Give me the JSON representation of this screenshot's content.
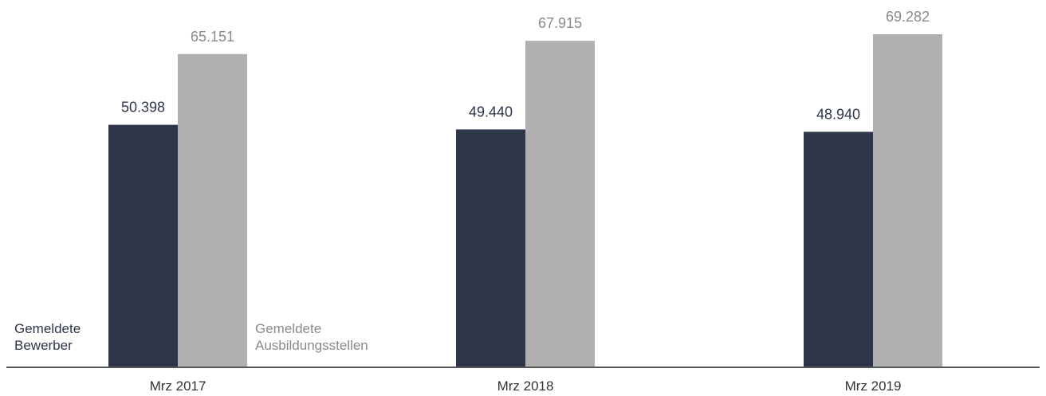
{
  "chart_data": {
    "type": "bar",
    "categories": [
      "Mrz 2017",
      "Mrz 2018",
      "Mrz 2019"
    ],
    "series": [
      {
        "name": "Gemeldete Bewerber",
        "name_lines": [
          "Gemeldete",
          "Bewerber"
        ],
        "values": [
          50398,
          49440,
          48940
        ],
        "labels": [
          "50.398",
          "49.440",
          "48.940"
        ],
        "color": "#2e3649"
      },
      {
        "name": "Gemeldete Ausbildungsstellen",
        "name_lines": [
          "Gemeldete",
          "Ausbildungsstellen"
        ],
        "values": [
          65151,
          67915,
          69282
        ],
        "labels": [
          "65.151",
          "67.915",
          "69.282"
        ],
        "color": "#b0b0b0"
      }
    ],
    "ylim": [
      0,
      69282
    ],
    "grid": false,
    "legend": "inside-bottom-left",
    "label_colors": {
      "Gemeldete Bewerber": "#2e3649",
      "Gemeldete Ausbildungsstellen": "#8a8a8a"
    },
    "axis_color": "#555555",
    "tick_label_color": "#333333"
  }
}
